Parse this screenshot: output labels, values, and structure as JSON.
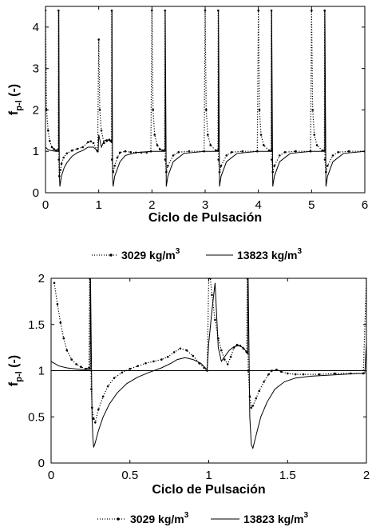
{
  "chart_data": [
    {
      "type": "line",
      "xlabel": "Ciclo de Pulsación",
      "ylabel": "f",
      "ylabel_sub": "p-l",
      "ylabel_suffix": " (-)",
      "xlim": [
        0,
        6
      ],
      "ylim": [
        0,
        4.5
      ],
      "xticks": [
        "0",
        "1",
        "2",
        "3",
        "4",
        "5",
        "6"
      ],
      "yticks": [
        "0",
        "1",
        "2",
        "3",
        "4"
      ],
      "grid": false,
      "legend": {
        "position": "bottom",
        "entries": [
          {
            "text": "3029 kg/m",
            "sup": "3",
            "style": "dotted"
          },
          {
            "text": "13823 kg/m",
            "sup": "3",
            "style": "solid"
          }
        ]
      },
      "series": [
        {
          "style": "dotted",
          "x": [
            0,
            0.02,
            0.05,
            0.08,
            0.12,
            0.16,
            0.2,
            0.24,
            0.245,
            0.25,
            0.26,
            0.28,
            0.3,
            0.34,
            0.4,
            0.5,
            0.6,
            0.7,
            0.8,
            0.85,
            0.9,
            0.97,
            0.98,
            1.0,
            1.02,
            1.05,
            1.1,
            1.15,
            1.2,
            1.24,
            1.245,
            1.25,
            1.27,
            1.3,
            1.35,
            1.4,
            1.5,
            1.6,
            1.7,
            1.8,
            1.9,
            1.98,
            2.0,
            2.02,
            2.05,
            2.1,
            2.15,
            2.2,
            2.24,
            2.245,
            2.25,
            2.27,
            2.3,
            2.4,
            2.5,
            2.7,
            2.98,
            3.0,
            3.02,
            3.05,
            3.1,
            3.2,
            3.24,
            3.245,
            3.25,
            3.27,
            3.3,
            3.4,
            3.5,
            3.7,
            3.98,
            4.0,
            4.02,
            4.05,
            4.1,
            4.2,
            4.24,
            4.245,
            4.25,
            4.27,
            4.3,
            4.4,
            4.5,
            4.7,
            4.98,
            5.0,
            5.02,
            5.05,
            5.1,
            5.2,
            5.24,
            5.245,
            5.25,
            5.27,
            5.3,
            5.4,
            5.5,
            5.7,
            6.0
          ],
          "y": [
            4.4,
            2.0,
            1.5,
            1.25,
            1.1,
            1.05,
            1.02,
            1.04,
            4.4,
            0.8,
            0.4,
            0.55,
            0.7,
            0.85,
            0.95,
            1.02,
            1.06,
            1.1,
            1.22,
            1.24,
            1.2,
            1.02,
            1.0,
            3.7,
            2.0,
            1.5,
            1.2,
            1.25,
            1.28,
            1.25,
            4.4,
            0.8,
            0.5,
            0.65,
            0.85,
            0.97,
            1.0,
            0.98,
            0.97,
            0.97,
            0.97,
            1.0,
            4.4,
            2.0,
            1.4,
            1.15,
            1.05,
            1.02,
            1.02,
            4.4,
            0.8,
            0.5,
            0.65,
            0.9,
            0.98,
            1.0,
            1.0,
            4.4,
            2.0,
            1.4,
            1.15,
            1.02,
            1.02,
            4.4,
            0.8,
            0.5,
            0.65,
            0.9,
            0.98,
            1.0,
            1.0,
            4.4,
            2.0,
            1.4,
            1.15,
            1.02,
            1.02,
            4.4,
            0.8,
            0.5,
            0.65,
            0.9,
            0.98,
            1.0,
            1.0,
            4.4,
            2.0,
            1.4,
            1.15,
            1.02,
            1.02,
            4.4,
            0.8,
            0.5,
            0.65,
            0.9,
            0.98,
            1.0,
            1.0
          ]
        },
        {
          "style": "solid",
          "x": [
            0,
            0.05,
            0.1,
            0.15,
            0.2,
            0.249,
            0.25,
            0.26,
            0.27,
            0.3,
            0.35,
            0.4,
            0.5,
            0.6,
            0.7,
            0.8,
            0.9,
            0.99,
            1.0,
            1.05,
            1.1,
            1.15,
            1.2,
            1.249,
            1.25,
            1.26,
            1.27,
            1.3,
            1.4,
            1.5,
            1.7,
            1.99,
            2.0,
            2.1,
            2.249,
            2.25,
            2.27,
            2.3,
            2.4,
            2.6,
            2.99,
            3.0,
            3.1,
            3.249,
            3.25,
            3.27,
            3.3,
            3.4,
            3.6,
            3.99,
            4.0,
            4.1,
            4.249,
            4.25,
            4.27,
            4.3,
            4.4,
            4.6,
            4.99,
            5.0,
            5.1,
            5.249,
            5.25,
            5.27,
            5.3,
            5.4,
            5.6,
            6.0
          ],
          "y": [
            1.1,
            1.04,
            1.02,
            1.01,
            1.0,
            1.0,
            4.4,
            0.5,
            0.15,
            0.4,
            0.6,
            0.72,
            0.88,
            0.97,
            1.02,
            1.1,
            1.1,
            1.0,
            1.4,
            1.1,
            1.25,
            1.28,
            1.26,
            1.2,
            4.4,
            0.4,
            0.15,
            0.4,
            0.75,
            0.9,
            0.97,
            1.0,
            1.0,
            1.0,
            1.0,
            4.4,
            0.15,
            0.4,
            0.75,
            0.95,
            1.0,
            1.0,
            1.0,
            1.0,
            4.4,
            0.15,
            0.4,
            0.75,
            0.95,
            1.0,
            1.0,
            1.0,
            1.0,
            4.4,
            0.15,
            0.4,
            0.75,
            0.95,
            1.0,
            1.0,
            1.0,
            1.0,
            4.4,
            0.15,
            0.4,
            0.75,
            0.95,
            1.0
          ]
        }
      ],
      "reference_line": null
    },
    {
      "type": "line",
      "xlabel": "Ciclo de Pulsación",
      "ylabel": "f",
      "ylabel_sub": "p-l",
      "ylabel_suffix": " (-)",
      "xlim": [
        0,
        2
      ],
      "ylim": [
        0,
        2
      ],
      "xticks": [
        "0",
        "0.5",
        "1",
        "1.5",
        "2"
      ],
      "yticks": [
        "0",
        "0.5",
        "1",
        "1.5",
        "2"
      ],
      "grid": false,
      "legend": {
        "position": "bottom",
        "entries": [
          {
            "text": "3029 kg/m",
            "sup": "3",
            "style": "dotted"
          },
          {
            "text": "13823 kg/m",
            "sup": "3",
            "style": "solid"
          }
        ]
      },
      "series": [
        {
          "style": "dotted",
          "x": [
            0.02,
            0.04,
            0.06,
            0.08,
            0.1,
            0.13,
            0.16,
            0.19,
            0.22,
            0.24,
            0.245,
            0.25,
            0.255,
            0.26,
            0.27,
            0.28,
            0.3,
            0.33,
            0.36,
            0.4,
            0.45,
            0.5,
            0.55,
            0.6,
            0.65,
            0.7,
            0.74,
            0.78,
            0.82,
            0.86,
            0.9,
            0.94,
            0.97,
            0.99,
            1.0,
            1.01,
            1.02,
            1.04,
            1.06,
            1.08,
            1.1,
            1.12,
            1.14,
            1.16,
            1.18,
            1.2,
            1.22,
            1.24,
            1.245,
            1.25,
            1.26,
            1.27,
            1.28,
            1.3,
            1.32,
            1.35,
            1.38,
            1.4,
            1.43,
            1.46,
            1.5,
            1.55,
            1.6,
            1.7,
            1.8,
            1.9,
            1.98,
            2.0
          ],
          "y": [
            1.95,
            1.72,
            1.52,
            1.35,
            1.22,
            1.12,
            1.07,
            1.04,
            1.02,
            1.03,
            2.0,
            1.3,
            0.8,
            0.6,
            0.48,
            0.44,
            0.58,
            0.72,
            0.83,
            0.92,
            0.98,
            1.02,
            1.05,
            1.08,
            1.1,
            1.12,
            1.15,
            1.2,
            1.24,
            1.22,
            1.16,
            1.08,
            1.03,
            1.0,
            2.0,
            2.0,
            1.82,
            1.55,
            1.35,
            1.22,
            1.12,
            1.07,
            1.15,
            1.25,
            1.28,
            1.27,
            1.24,
            1.2,
            2.0,
            1.0,
            0.72,
            0.6,
            0.62,
            0.7,
            0.78,
            0.88,
            0.96,
            1.0,
            1.01,
            0.99,
            0.97,
            0.96,
            0.96,
            0.96,
            0.97,
            0.97,
            0.97,
            2.0
          ]
        },
        {
          "style": "solid",
          "x": [
            0,
            0.05,
            0.1,
            0.15,
            0.2,
            0.24,
            0.248,
            0.25,
            0.26,
            0.265,
            0.27,
            0.28,
            0.3,
            0.33,
            0.37,
            0.42,
            0.48,
            0.55,
            0.62,
            0.7,
            0.76,
            0.8,
            0.85,
            0.9,
            0.95,
            0.99,
            1.0,
            1.02,
            1.04,
            1.06,
            1.08,
            1.1,
            1.13,
            1.16,
            1.19,
            1.22,
            1.24,
            1.248,
            1.25,
            1.26,
            1.27,
            1.28,
            1.3,
            1.33,
            1.37,
            1.42,
            1.48,
            1.55,
            1.65,
            1.75,
            1.85,
            1.95,
            1.99,
            2.0
          ],
          "y": [
            1.1,
            1.05,
            1.03,
            1.02,
            1.01,
            1.01,
            1.01,
            2.0,
            0.5,
            0.28,
            0.17,
            0.22,
            0.35,
            0.5,
            0.64,
            0.76,
            0.86,
            0.93,
            0.98,
            1.03,
            1.08,
            1.12,
            1.14,
            1.12,
            1.08,
            1.01,
            1.3,
            1.65,
            1.95,
            1.25,
            1.1,
            1.15,
            1.22,
            1.26,
            1.27,
            1.25,
            1.2,
            1.18,
            2.0,
            0.5,
            0.2,
            0.16,
            0.3,
            0.5,
            0.66,
            0.8,
            0.88,
            0.92,
            0.94,
            0.95,
            0.96,
            0.97,
            0.97,
            1.3
          ]
        }
      ],
      "reference_line": {
        "y": 1
      }
    }
  ]
}
